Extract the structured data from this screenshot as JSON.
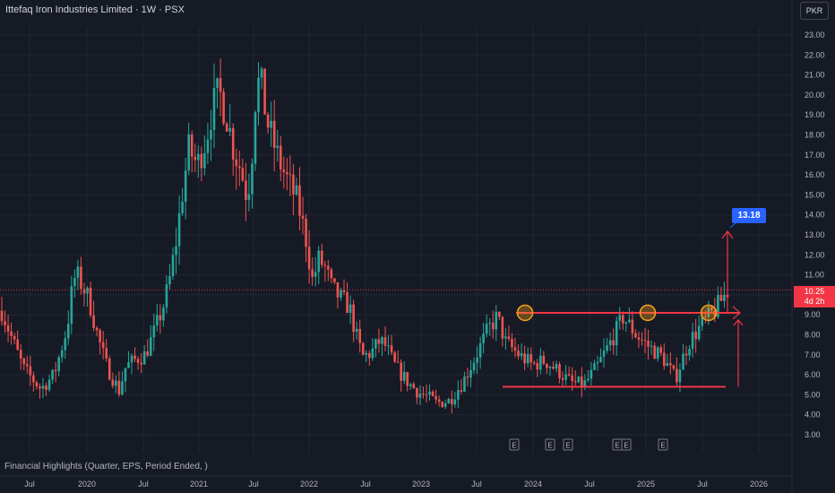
{
  "header": {
    "title": "Ittefaq Iron Industries Limited · 1W · PSX",
    "currency_label": "PKR"
  },
  "footer": {
    "financial_highlights": "Financial Highlights (Quarter, EPS, Period Ended, )"
  },
  "price_tag": {
    "value": "10.25",
    "countdown": "4d 2h"
  },
  "target_label": "13.18",
  "colors": {
    "up": "#26a69a",
    "down": "#ef5350",
    "drawing": "#f23645",
    "marker": "#f7a21b",
    "target": "#2962ff",
    "background": "#161a25"
  },
  "chart_data": {
    "type": "candlestick",
    "yticks": [
      "23.00",
      "22.00",
      "21.00",
      "20.00",
      "19.00",
      "18.00",
      "17.00",
      "16.00",
      "15.00",
      "14.00",
      "13.00",
      "12.00",
      "11.00",
      "10.00",
      "9.00",
      "8.00",
      "7.00",
      "6.00",
      "5.00",
      "4.00",
      "3.00"
    ],
    "ylim": [
      3,
      23
    ],
    "xticks": [
      "Jul",
      "2020",
      "Jul",
      "2021",
      "Jul",
      "2022",
      "Jul",
      "2023",
      "Jul",
      "2024",
      "Jul",
      "2025",
      "Jul",
      "2026"
    ],
    "grid": true,
    "current_price": 10.25,
    "resistance": 9.1,
    "support": 5.4,
    "target": 13.18,
    "earnings_markers": [
      "E",
      "E",
      "E",
      "E",
      "E",
      "E"
    ],
    "trend_points": [
      [
        0,
        9.2
      ],
      [
        0.02,
        8.0
      ],
      [
        0.05,
        6.3
      ],
      [
        0.09,
        5.3
      ],
      [
        0.12,
        6.0
      ],
      [
        0.15,
        8.3
      ],
      [
        0.165,
        10.8
      ],
      [
        0.175,
        10.9
      ],
      [
        0.2,
        9.8
      ],
      [
        0.22,
        8.0
      ],
      [
        0.24,
        6.5
      ],
      [
        0.27,
        5.2
      ],
      [
        0.285,
        6.4
      ],
      [
        0.31,
        6.8
      ],
      [
        0.33,
        7.0
      ],
      [
        0.35,
        8.1
      ],
      [
        0.37,
        9.3
      ],
      [
        0.385,
        10.6
      ],
      [
        0.4,
        12.5
      ],
      [
        0.415,
        15.0
      ],
      [
        0.43,
        17.3
      ],
      [
        0.45,
        16.5
      ],
      [
        0.47,
        17.8
      ],
      [
        0.485,
        19.4
      ],
      [
        0.5,
        20.2
      ],
      [
        0.52,
        18.7
      ],
      [
        0.535,
        17.1
      ],
      [
        0.55,
        16.3
      ],
      [
        0.565,
        14.8
      ],
      [
        0.575,
        16.8
      ],
      [
        0.585,
        20.3
      ],
      [
        0.595,
        20.8
      ],
      [
        0.61,
        18.7
      ],
      [
        0.625,
        17.6
      ],
      [
        0.64,
        16.6
      ],
      [
        0.66,
        15.6
      ],
      [
        0.68,
        14.7
      ],
      [
        0.7,
        12.8
      ],
      [
        0.715,
        10.7
      ],
      [
        0.73,
        11.8
      ],
      [
        0.745,
        11.3
      ],
      [
        0.76,
        10.3
      ],
      [
        0.78,
        9.8
      ],
      [
        0.8,
        9.4
      ],
      [
        0.815,
        8.0
      ],
      [
        0.83,
        6.9
      ],
      [
        0.85,
        7.1
      ],
      [
        0.87,
        7.7
      ],
      [
        0.885,
        7.4
      ],
      [
        0.9,
        6.6
      ],
      [
        0.92,
        6.0
      ],
      [
        0.94,
        5.5
      ],
      [
        0.96,
        5.1
      ],
      [
        0.98,
        4.9
      ],
      [
        1.0,
        4.6
      ]
    ]
  }
}
